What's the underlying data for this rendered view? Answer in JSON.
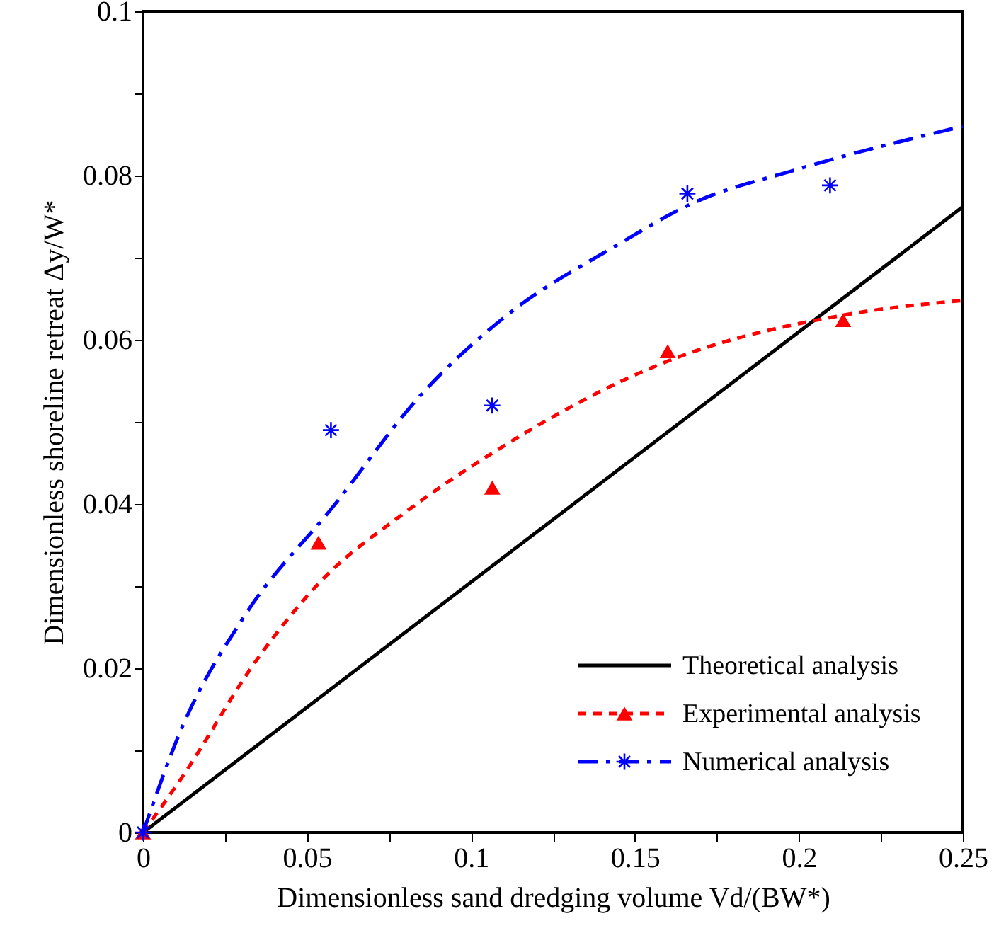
{
  "chart_data": {
    "type": "line",
    "xlabel": "Dimensionless sand dredging volume Vd/(BW*)",
    "ylabel": "Dimensionless shoreline retreat Δy/W*",
    "xlim": [
      0,
      0.25
    ],
    "ylim": [
      0,
      0.1
    ],
    "xticks": [
      0,
      {
        "value": 0.025,
        "label": null
      },
      0.05,
      {
        "value": 0.075,
        "label": null
      },
      0.1,
      {
        "value": 0.125,
        "label": null
      },
      0.15,
      {
        "value": 0.175,
        "label": null
      },
      0.2,
      {
        "value": 0.225,
        "label": null
      },
      0.25
    ],
    "yticks": [
      0,
      {
        "value": 0.01,
        "label": null
      },
      0.02,
      {
        "value": 0.03,
        "label": null
      },
      0.04,
      {
        "value": 0.05,
        "label": null
      },
      0.06,
      {
        "value": 0.07,
        "label": null
      },
      0.08,
      {
        "value": 0.09,
        "label": null
      },
      0.1
    ],
    "legend": "bottom right",
    "grid": false,
    "series": [
      {
        "name": "Theoretical analysis",
        "type": "line",
        "color": "#000000",
        "line_style": "solid",
        "marker": "none",
        "x": [
          0,
          0.25
        ],
        "values": [
          0,
          0.0762
        ]
      },
      {
        "name": "Experimental analysis",
        "type": "scatter",
        "color": "#ff0000",
        "marker": "triangle",
        "x": [
          0,
          0.0535,
          0.1065,
          0.16,
          0.2135
        ],
        "values": [
          0,
          0.0353,
          0.042,
          0.0586,
          0.0624
        ]
      },
      {
        "type": "line",
        "color": "#ff0000",
        "line_style": "dashed",
        "marker": "none",
        "x": [
          0,
          0.0117,
          0.035,
          0.0535,
          0.08,
          0.1065,
          0.16,
          0.2135,
          0.25
        ],
        "values": [
          0,
          0.0066,
          0.0212,
          0.0303,
          0.039,
          0.0462,
          0.0574,
          0.063,
          0.0648
        ]
      },
      {
        "name": "Numerical analysis",
        "type": "scatter",
        "color": "#0000ff",
        "marker": "cross",
        "x": [
          0,
          0.0573,
          0.1065,
          0.166,
          0.2095
        ],
        "values": [
          0,
          0.049,
          0.052,
          0.0778,
          0.0788
        ]
      },
      {
        "type": "line",
        "color": "#0000ff",
        "line_style": "dashdot",
        "marker": "none",
        "x": [
          0,
          0.0117,
          0.031,
          0.058,
          0.085,
          0.111,
          0.144,
          0.168,
          0.199,
          0.25
        ],
        "values": [
          0,
          0.0126,
          0.0264,
          0.0397,
          0.0534,
          0.063,
          0.0714,
          0.0767,
          0.0807,
          0.086
        ]
      }
    ]
  }
}
